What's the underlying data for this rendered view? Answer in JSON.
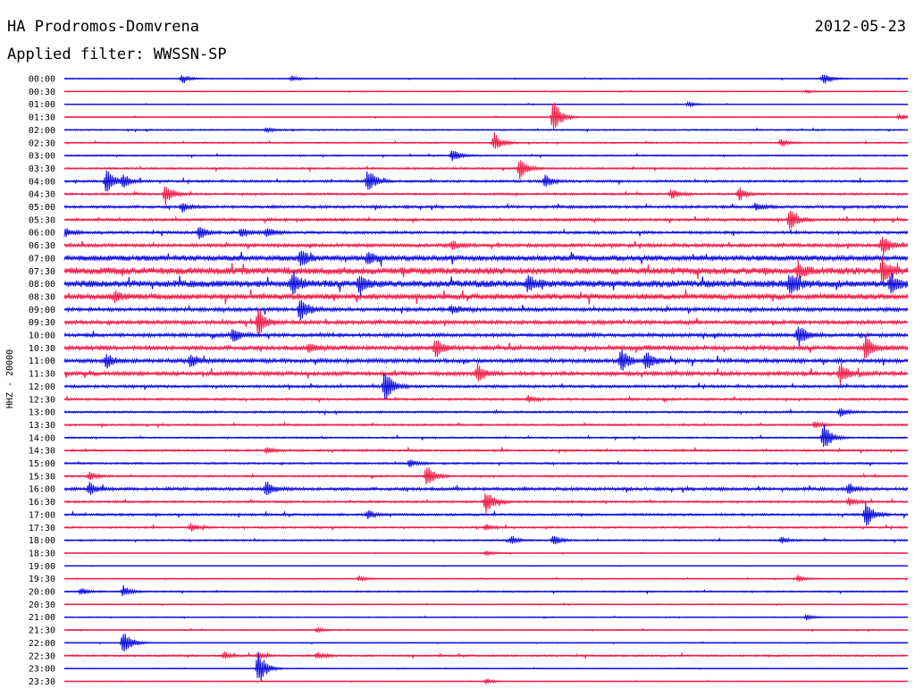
{
  "header": {
    "station": "HA Prodromos-Domvrena",
    "date": "2012-05-23",
    "filter": "Applied filter: WWSSN-SP"
  },
  "chart_data": {
    "type": "line",
    "ylabel": "HHZ - 20000",
    "colors": {
      "even": "#1010e0",
      "odd": "#f0204c"
    },
    "rows": [
      {
        "label": "00:00",
        "noise": 0.4,
        "events": [
          [
            0.14,
            5
          ],
          [
            0.27,
            3
          ],
          [
            0.9,
            7
          ]
        ]
      },
      {
        "label": "00:30",
        "noise": 0.3,
        "events": [
          [
            0.88,
            2
          ]
        ]
      },
      {
        "label": "01:00",
        "noise": 0.3,
        "events": [
          [
            0.74,
            3
          ]
        ]
      },
      {
        "label": "01:30",
        "noise": 0.4,
        "events": [
          [
            0.58,
            22
          ],
          [
            0.99,
            4
          ]
        ]
      },
      {
        "label": "02:00",
        "noise": 0.6,
        "events": [
          [
            0.24,
            3
          ]
        ]
      },
      {
        "label": "02:30",
        "noise": 0.6,
        "events": [
          [
            0.51,
            12
          ],
          [
            0.85,
            4
          ]
        ]
      },
      {
        "label": "03:00",
        "noise": 0.6,
        "events": [
          [
            0.46,
            8
          ]
        ]
      },
      {
        "label": "03:30",
        "noise": 0.8,
        "events": [
          [
            0.54,
            12
          ]
        ]
      },
      {
        "label": "04:00",
        "noise": 1.0,
        "events": [
          [
            0.05,
            16
          ],
          [
            0.07,
            8
          ],
          [
            0.36,
            16
          ],
          [
            0.57,
            8
          ]
        ]
      },
      {
        "label": "04:30",
        "noise": 0.9,
        "events": [
          [
            0.12,
            12
          ],
          [
            0.72,
            6
          ],
          [
            0.8,
            8
          ]
        ]
      },
      {
        "label": "05:00",
        "noise": 1.2,
        "events": [
          [
            0.14,
            5
          ],
          [
            0.82,
            5
          ]
        ]
      },
      {
        "label": "05:30",
        "noise": 1.2,
        "events": [
          [
            0.86,
            14
          ]
        ]
      },
      {
        "label": "06:00",
        "noise": 1.2,
        "events": [
          [
            0.0,
            6
          ],
          [
            0.16,
            7
          ],
          [
            0.21,
            6
          ],
          [
            0.24,
            6
          ]
        ]
      },
      {
        "label": "06:30",
        "noise": 1.5,
        "events": [
          [
            0.46,
            5
          ],
          [
            0.97,
            12
          ]
        ]
      },
      {
        "label": "07:00",
        "noise": 2.5,
        "events": [
          [
            0.28,
            10
          ],
          [
            0.36,
            7
          ]
        ]
      },
      {
        "label": "07:30",
        "noise": 3.2,
        "events": [
          [
            0.87,
            10
          ],
          [
            0.97,
            14
          ]
        ]
      },
      {
        "label": "08:00",
        "noise": 3.2,
        "events": [
          [
            0.27,
            14
          ],
          [
            0.35,
            12
          ],
          [
            0.55,
            10
          ],
          [
            0.86,
            14
          ],
          [
            0.98,
            10
          ]
        ]
      },
      {
        "label": "08:30",
        "noise": 2.6,
        "events": [
          [
            0.06,
            6
          ]
        ]
      },
      {
        "label": "09:00",
        "noise": 1.7,
        "events": [
          [
            0.28,
            15
          ],
          [
            0.46,
            5
          ]
        ]
      },
      {
        "label": "09:30",
        "noise": 1.7,
        "events": [
          [
            0.23,
            16
          ]
        ]
      },
      {
        "label": "10:00",
        "noise": 1.6,
        "events": [
          [
            0.2,
            8
          ],
          [
            0.87,
            14
          ]
        ]
      },
      {
        "label": "10:30",
        "noise": 1.9,
        "events": [
          [
            0.29,
            6
          ],
          [
            0.44,
            12
          ],
          [
            0.95,
            16
          ]
        ]
      },
      {
        "label": "11:00",
        "noise": 1.8,
        "events": [
          [
            0.05,
            8
          ],
          [
            0.15,
            8
          ],
          [
            0.66,
            15
          ],
          [
            0.69,
            12
          ]
        ]
      },
      {
        "label": "11:30",
        "noise": 1.8,
        "events": [
          [
            0.49,
            10
          ],
          [
            0.92,
            14
          ]
        ]
      },
      {
        "label": "12:00",
        "noise": 1.2,
        "events": [
          [
            0.38,
            22
          ]
        ]
      },
      {
        "label": "12:30",
        "noise": 1.0,
        "events": [
          [
            0.55,
            4
          ]
        ]
      },
      {
        "label": "13:00",
        "noise": 0.9,
        "events": [
          [
            0.92,
            5
          ]
        ]
      },
      {
        "label": "13:30",
        "noise": 0.8,
        "events": [
          [
            0.89,
            4
          ]
        ]
      },
      {
        "label": "14:00",
        "noise": 0.7,
        "events": [
          [
            0.9,
            18
          ]
        ]
      },
      {
        "label": "14:30",
        "noise": 0.9,
        "events": [
          [
            0.24,
            4
          ]
        ]
      },
      {
        "label": "15:00",
        "noise": 0.8,
        "events": [
          [
            0.41,
            5
          ]
        ]
      },
      {
        "label": "15:30",
        "noise": 0.8,
        "events": [
          [
            0.03,
            5
          ],
          [
            0.43,
            15
          ]
        ]
      },
      {
        "label": "16:00",
        "noise": 1.4,
        "events": [
          [
            0.03,
            7
          ],
          [
            0.24,
            10
          ],
          [
            0.93,
            6
          ]
        ]
      },
      {
        "label": "16:30",
        "noise": 0.9,
        "events": [
          [
            0.5,
            15
          ],
          [
            0.93,
            5
          ]
        ]
      },
      {
        "label": "17:00",
        "noise": 1.0,
        "events": [
          [
            0.36,
            5
          ],
          [
            0.95,
            16
          ]
        ]
      },
      {
        "label": "17:30",
        "noise": 0.8,
        "events": [
          [
            0.15,
            5
          ],
          [
            0.5,
            4
          ]
        ]
      },
      {
        "label": "18:00",
        "noise": 0.7,
        "events": [
          [
            0.53,
            5
          ],
          [
            0.58,
            6
          ],
          [
            0.85,
            4
          ]
        ]
      },
      {
        "label": "18:30",
        "noise": 0.4,
        "events": [
          [
            0.5,
            3
          ]
        ]
      },
      {
        "label": "19:00",
        "noise": 0.2,
        "events": []
      },
      {
        "label": "19:30",
        "noise": 0.4,
        "events": [
          [
            0.35,
            3
          ],
          [
            0.87,
            4
          ]
        ]
      },
      {
        "label": "20:00",
        "noise": 0.6,
        "events": [
          [
            0.02,
            4
          ],
          [
            0.07,
            7
          ]
        ]
      },
      {
        "label": "20:30",
        "noise": 0.4,
        "events": []
      },
      {
        "label": "21:00",
        "noise": 0.4,
        "events": [
          [
            0.88,
            3
          ]
        ]
      },
      {
        "label": "21:30",
        "noise": 0.5,
        "events": [
          [
            0.3,
            3
          ]
        ]
      },
      {
        "label": "22:00",
        "noise": 0.4,
        "events": [
          [
            0.07,
            17
          ]
        ]
      },
      {
        "label": "22:30",
        "noise": 0.8,
        "events": [
          [
            0.19,
            4
          ],
          [
            0.23,
            4
          ],
          [
            0.3,
            4
          ]
        ]
      },
      {
        "label": "23:00",
        "noise": 0.3,
        "events": [
          [
            0.23,
            22
          ]
        ]
      },
      {
        "label": "23:30",
        "noise": 0.3,
        "events": [
          [
            0.5,
            3
          ]
        ]
      }
    ]
  }
}
